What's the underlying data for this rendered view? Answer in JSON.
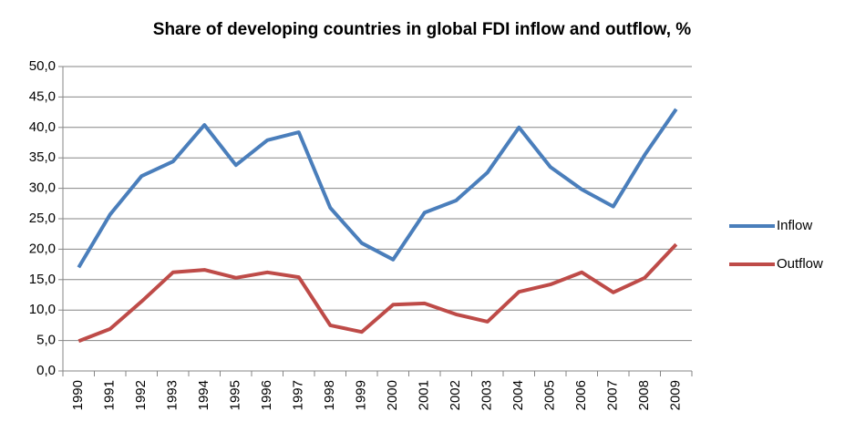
{
  "chart_data": {
    "type": "line",
    "title": "Share of developing countries in global FDI inflow and outflow, %",
    "categories": [
      "1990",
      "1991",
      "1992",
      "1993",
      "1994",
      "1995",
      "1996",
      "1997",
      "1998",
      "1999",
      "2000",
      "2001",
      "2002",
      "2003",
      "2004",
      "2005",
      "2006",
      "2007",
      "2008",
      "2009"
    ],
    "series": [
      {
        "name": "Inflow",
        "color": "#4a7ebb",
        "values": [
          17.0,
          25.7,
          32.0,
          34.4,
          40.4,
          33.8,
          37.9,
          39.2,
          26.8,
          21.0,
          18.3,
          26.0,
          28.0,
          32.6,
          40.0,
          33.5,
          29.8,
          27.0,
          35.5,
          43.0
        ]
      },
      {
        "name": "Outflow",
        "color": "#be4b48",
        "values": [
          4.9,
          6.9,
          11.4,
          16.2,
          16.6,
          15.3,
          16.2,
          15.4,
          7.5,
          6.4,
          10.9,
          11.1,
          9.3,
          8.1,
          13.0,
          14.2,
          16.2,
          12.9,
          15.3,
          20.8
        ]
      }
    ],
    "ylim": [
      0,
      50
    ],
    "yticks": [
      {
        "value": 0,
        "label": "0,0"
      },
      {
        "value": 5,
        "label": "5,0"
      },
      {
        "value": 10,
        "label": "10,0"
      },
      {
        "value": 15,
        "label": "15,0"
      },
      {
        "value": 20,
        "label": "20,0"
      },
      {
        "value": 25,
        "label": "25,0"
      },
      {
        "value": 30,
        "label": "30,0"
      },
      {
        "value": 35,
        "label": "35,0"
      },
      {
        "value": 40,
        "label": "40,0"
      },
      {
        "value": 45,
        "label": "45,0"
      },
      {
        "value": 50,
        "label": "50,0"
      }
    ],
    "grid": true,
    "legend": "right"
  }
}
